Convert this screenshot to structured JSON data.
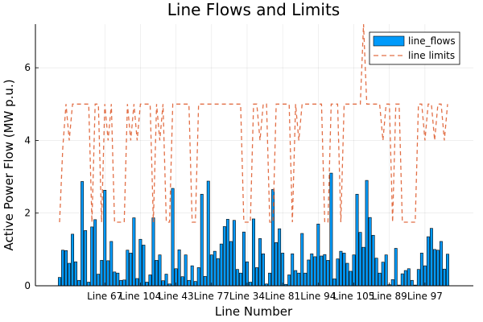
{
  "chart_data": {
    "type": "bar",
    "title": "Line Flows and Limits",
    "xlabel": "Line Number",
    "ylabel": "Active Power Flow (MW p.u.)",
    "ylim": [
      0,
      7.2
    ],
    "yticks": [
      0,
      2,
      4,
      6
    ],
    "grid": true,
    "legend_position": "top-right",
    "x_ticks": [
      {
        "label": "Line 67",
        "index": 14
      },
      {
        "label": "Line 104",
        "index": 25
      },
      {
        "label": "Line 43",
        "index": 36
      },
      {
        "label": "Line 77",
        "index": 47
      },
      {
        "label": "Line 34",
        "index": 58
      },
      {
        "label": "Line 81",
        "index": 69
      },
      {
        "label": "Line 94",
        "index": 80
      },
      {
        "label": "Line 105",
        "index": 91
      },
      {
        "label": "Line 89",
        "index": 102
      },
      {
        "label": "Line 97",
        "index": 113
      }
    ],
    "series": [
      {
        "name": "line_flows",
        "kind": "bar",
        "color": "#009AFA",
        "values": [
          0.23,
          0.98,
          0.97,
          0.62,
          1.42,
          0.66,
          0.15,
          2.87,
          1.52,
          0.1,
          1.62,
          1.82,
          0.32,
          0.7,
          2.63,
          0.69,
          1.22,
          0.38,
          0.35,
          0.15,
          0.16,
          0.98,
          0.9,
          1.87,
          0.2,
          1.28,
          1.12,
          0.1,
          0.3,
          1.87,
          0.7,
          0.85,
          0.14,
          0.32,
          0.05,
          2.68,
          0.47,
          0.99,
          0.25,
          0.85,
          0.15,
          0.55,
          0.12,
          0.5,
          2.52,
          0.26,
          2.88,
          0.85,
          0.95,
          0.75,
          1.15,
          1.63,
          1.83,
          1.22,
          1.8,
          0.45,
          0.35,
          1.48,
          0.66,
          0.1,
          1.84,
          0.5,
          1.3,
          0.88,
          0.05,
          0.35,
          2.65,
          1.19,
          1.57,
          0.9,
          0.04,
          0.3,
          0.88,
          0.42,
          0.35,
          1.44,
          0.35,
          0.71,
          0.88,
          0.8,
          1.7,
          0.82,
          0.86,
          0.7,
          3.1,
          0.19,
          0.74,
          0.95,
          0.9,
          0.62,
          0.4,
          0.85,
          2.52,
          1.47,
          1.06,
          2.9,
          1.88,
          1.39,
          0.76,
          0.35,
          0.65,
          0.85,
          0.03,
          0.17,
          1.03,
          0.02,
          0.33,
          0.42,
          0.47,
          0.15,
          0.02,
          0.45,
          0.9,
          0.55,
          1.35,
          1.58,
          1.0,
          0.98,
          1.22,
          0.46,
          0.87
        ]
      },
      {
        "name": "line limits",
        "kind": "line",
        "color": "#E26F46",
        "dashed": true,
        "values": [
          1.75,
          3.8,
          5.0,
          4.0,
          5.0,
          5.0,
          5.0,
          5.0,
          5.0,
          5.0,
          1.75,
          5.0,
          5.0,
          1.75,
          5.0,
          4.0,
          5.0,
          1.75,
          1.75,
          1.75,
          1.75,
          5.0,
          4.0,
          5.0,
          4.0,
          5.0,
          5.0,
          5.0,
          5.0,
          1.75,
          5.0,
          4.0,
          5.0,
          1.75,
          1.75,
          5.0,
          5.0,
          5.0,
          5.0,
          5.0,
          5.0,
          1.75,
          1.75,
          5.0,
          5.0,
          5.0,
          5.0,
          5.0,
          5.0,
          5.0,
          5.0,
          5.0,
          5.0,
          5.0,
          5.0,
          5.0,
          5.0,
          1.75,
          1.75,
          1.75,
          5.0,
          5.0,
          4.0,
          5.0,
          5.0,
          1.75,
          1.75,
          5.0,
          5.0,
          5.0,
          5.0,
          5.0,
          1.75,
          5.0,
          4.0,
          5.0,
          5.0,
          5.0,
          5.0,
          5.0,
          5.0,
          5.0,
          1.75,
          1.75,
          5.0,
          5.0,
          5.0,
          1.75,
          5.0,
          5.0,
          5.0,
          5.0,
          5.0,
          5.0,
          7.2,
          5.0,
          5.0,
          5.0,
          5.0,
          5.0,
          4.0,
          5.0,
          5.0,
          1.75,
          5.0,
          5.0,
          1.75,
          1.75,
          1.75,
          1.75,
          1.75,
          5.0,
          5.0,
          4.0,
          5.0,
          5.0,
          4.0,
          5.0,
          5.0,
          4.0,
          5.0
        ]
      }
    ]
  }
}
